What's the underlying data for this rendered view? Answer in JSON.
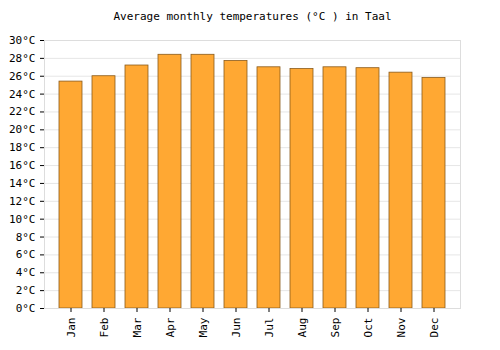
{
  "chart_data": {
    "type": "bar",
    "title": "Average monthly temperatures (°C ) in Taal",
    "categories": [
      "Jan",
      "Feb",
      "Mar",
      "Apr",
      "May",
      "Jun",
      "Jul",
      "Aug",
      "Sep",
      "Oct",
      "Nov",
      "Dec"
    ],
    "values": [
      25.4,
      26.0,
      27.2,
      28.4,
      28.4,
      27.7,
      27.0,
      26.8,
      27.0,
      26.9,
      26.4,
      25.8
    ],
    "color": "#ffa833",
    "ylim": [
      0,
      30
    ],
    "yticks": [
      {
        "value": 0,
        "label": "0°C"
      },
      {
        "value": 2,
        "label": "2°C"
      },
      {
        "value": 4,
        "label": "4°C"
      },
      {
        "value": 6,
        "label": "6°C"
      },
      {
        "value": 8,
        "label": "8°C"
      },
      {
        "value": 10,
        "label": "10°C"
      },
      {
        "value": 12,
        "label": "12°C"
      },
      {
        "value": 14,
        "label": "14°C"
      },
      {
        "value": 16,
        "label": "16°C"
      },
      {
        "value": 18,
        "label": "18°C"
      },
      {
        "value": 20,
        "label": "20°C"
      },
      {
        "value": 22,
        "label": "22°C"
      },
      {
        "value": 24,
        "label": "24°C"
      },
      {
        "value": 26,
        "label": "26°C"
      },
      {
        "value": 28,
        "label": "28°C"
      },
      {
        "value": 30,
        "label": "30°C"
      }
    ],
    "grid": true
  }
}
